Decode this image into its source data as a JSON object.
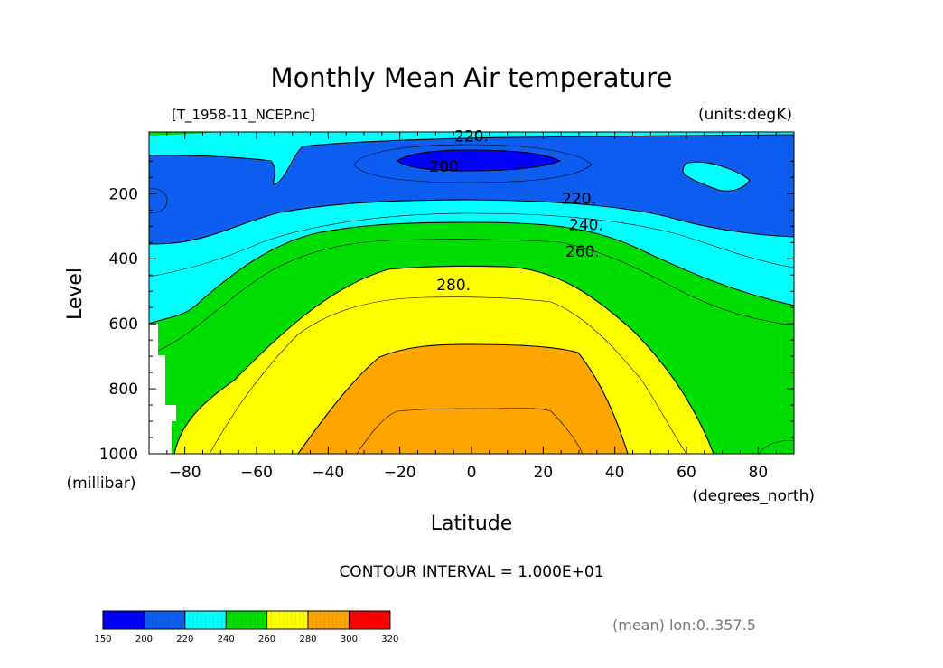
{
  "colors": {
    "c150": "#0000ff",
    "c200": "#0d5ef0",
    "c220": "#00ffff",
    "c240": "#00dd00",
    "c260": "#ffff00",
    "c280": "#ffa500",
    "c300": "#ff0000",
    "missing": "#ffffff"
  },
  "chart_data": {
    "type": "heatmap",
    "title": "Monthly Mean Air temperature",
    "file_label": "[T_1958-11_NCEP.nc]",
    "units_label": "(units:degK)",
    "xlabel": "Latitude",
    "x_units": "(degrees_north)",
    "ylabel": "Level",
    "y_units": "(millibar)",
    "xlim": [
      -90,
      90
    ],
    "ylim": [
      1000,
      10
    ],
    "x_ticks": [
      -80,
      -60,
      -40,
      -20,
      0,
      20,
      40,
      60,
      80
    ],
    "x_tick_labels": [
      "−80",
      "−60",
      "−40",
      "−20",
      "0",
      "20",
      "40",
      "60",
      "80"
    ],
    "y_ticks": [
      200,
      400,
      600,
      800,
      1000
    ],
    "y_tick_labels": [
      "200",
      "400",
      "600",
      "800",
      "1000"
    ],
    "contour_interval_text": "CONTOUR INTERVAL = 1.000E+01",
    "contour_labels": [
      "220.",
      "200.",
      "220.",
      "240.",
      "260.",
      "280."
    ],
    "colorbar": {
      "levels": [
        150,
        200,
        220,
        240,
        260,
        280,
        300,
        320
      ],
      "labels": [
        "150",
        "200",
        "220",
        "240",
        "260",
        "280",
        "300",
        "320"
      ]
    },
    "footnote": "(mean) lon:0..357.5",
    "grid": false
  }
}
